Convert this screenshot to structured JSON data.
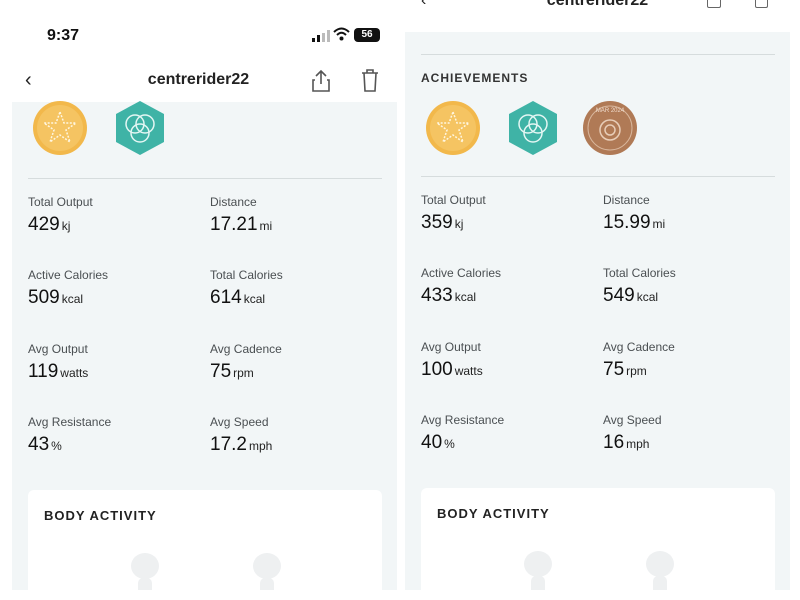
{
  "left": {
    "status_time": "9:37",
    "battery": "56",
    "nav_title": "centrerider22",
    "metrics": [
      {
        "label": "Total Output",
        "value": "429",
        "unit": "kj"
      },
      {
        "label": "Distance",
        "value": "17.21",
        "unit": "mi"
      },
      {
        "label": "Active Calories",
        "value": "509",
        "unit": "kcal"
      },
      {
        "label": "Total Calories",
        "value": "614",
        "unit": "kcal"
      },
      {
        "label": "Avg Output",
        "value": "119",
        "unit": "watts"
      },
      {
        "label": "Avg Cadence",
        "value": "75",
        "unit": "rpm"
      },
      {
        "label": "Avg Resistance",
        "value": "43",
        "unit": "%"
      },
      {
        "label": "Avg Speed",
        "value": "17.2",
        "unit": "mph"
      }
    ],
    "body_activity_title": "BODY ACTIVITY"
  },
  "right": {
    "nav_title": "centrerider22",
    "achievements_title": "ACHIEVEMENTS",
    "badge_text": "MAR 2024",
    "metrics": [
      {
        "label": "Total Output",
        "value": "359",
        "unit": "kj"
      },
      {
        "label": "Distance",
        "value": "15.99",
        "unit": "mi"
      },
      {
        "label": "Active Calories",
        "value": "433",
        "unit": "kcal"
      },
      {
        "label": "Total Calories",
        "value": "549",
        "unit": "kcal"
      },
      {
        "label": "Avg Output",
        "value": "100",
        "unit": "watts"
      },
      {
        "label": "Avg Cadence",
        "value": "75",
        "unit": "rpm"
      },
      {
        "label": "Avg Resistance",
        "value": "40",
        "unit": "%"
      },
      {
        "label": "Avg Speed",
        "value": "16",
        "unit": "mph"
      }
    ],
    "body_activity_title": "BODY ACTIVITY"
  },
  "icons": {
    "back": "chevron-left-icon",
    "share": "share-icon",
    "trash": "trash-icon",
    "badge_star": "star-badge-icon",
    "badge_circles": "circles-badge-icon",
    "badge_monthly": "monthly-challenge-badge-icon"
  },
  "colors": {
    "panel_bg": "#f2f6f7",
    "star_badge": "#f2b84b",
    "teal_badge": "#3fb3a6",
    "bronze_badge": "#b07a56"
  }
}
